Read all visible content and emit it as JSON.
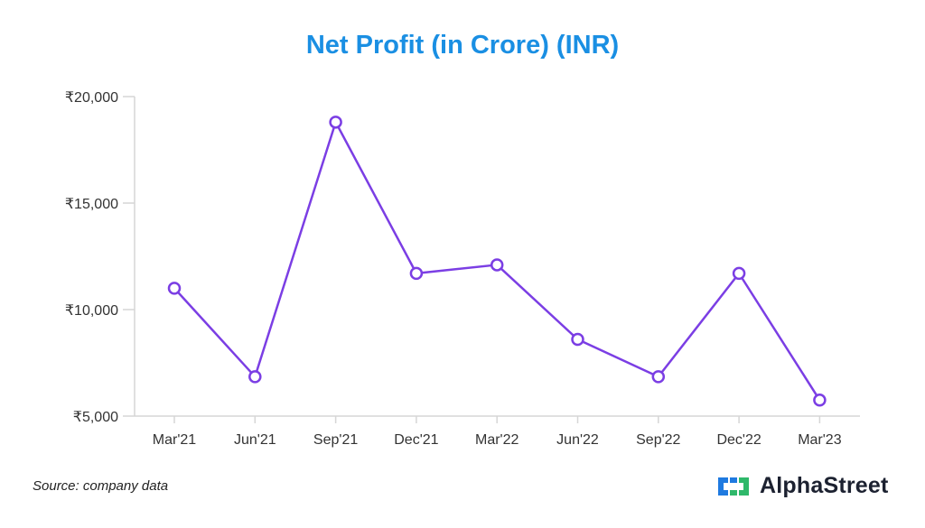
{
  "chart_data": {
    "type": "line",
    "title": "Net Profit (in Crore) (INR)",
    "categories": [
      "Mar'21",
      "Jun'21",
      "Sep'21",
      "Dec'21",
      "Mar'22",
      "Jun'22",
      "Sep'22",
      "Dec'22",
      "Mar'23"
    ],
    "series": [
      {
        "values": [
          11000,
          6850,
          18800,
          11700,
          12100,
          8600,
          6850,
          11700,
          5750
        ]
      }
    ],
    "yticks": [
      "₹5,000",
      "₹10,000",
      "₹15,000",
      "₹20,000"
    ],
    "ytick_values": [
      5000,
      10000,
      15000,
      20000
    ],
    "ylim": [
      5000,
      20000
    ],
    "grid": false,
    "legend": "none"
  },
  "colors": {
    "title": "#1a8fe3",
    "line": "#7b3ee4",
    "axis": "#d6d6d6",
    "logo_blue": "#1f7ae0",
    "logo_green": "#2fb86a"
  },
  "footer": {
    "source": "Source: company data",
    "brand": "AlphaStreet",
    "brand_icon": "alphastreet-logo-icon"
  }
}
